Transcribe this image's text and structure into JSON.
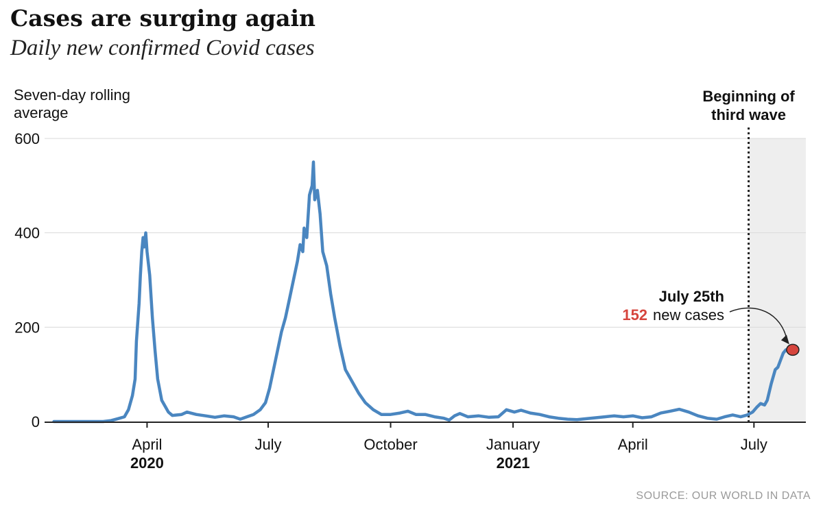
{
  "chart_data": {
    "type": "line",
    "title": "Cases are surging again",
    "subtitle": "Daily new confirmed Covid cases",
    "ylabel_line1": "Seven-day rolling",
    "ylabel_line2": "average",
    "ylim": [
      0,
      600
    ],
    "y_ticks": [
      "0",
      "200",
      "400",
      "600"
    ],
    "grid": true,
    "x_ticks": [
      {
        "label": "April",
        "year": "2020",
        "date": "2020-04-01"
      },
      {
        "label": "July",
        "year": "",
        "date": "2020-07-01"
      },
      {
        "label": "October",
        "year": "",
        "date": "2020-10-01"
      },
      {
        "label": "January",
        "year": "2021",
        "date": "2021-01-01"
      },
      {
        "label": "April",
        "year": "",
        "date": "2021-04-01"
      },
      {
        "label": "July",
        "year": "",
        "date": "2021-07-01"
      }
    ],
    "series": [
      {
        "color": "#4a86c0",
        "points": [
          [
            "2020-01-22",
            0
          ],
          [
            "2020-02-01",
            0
          ],
          [
            "2020-02-15",
            0
          ],
          [
            "2020-02-28",
            0
          ],
          [
            "2020-03-05",
            2
          ],
          [
            "2020-03-10",
            6
          ],
          [
            "2020-03-15",
            10
          ],
          [
            "2020-03-18",
            25
          ],
          [
            "2020-03-21",
            55
          ],
          [
            "2020-03-23",
            90
          ],
          [
            "2020-03-24",
            170
          ],
          [
            "2020-03-26",
            250
          ],
          [
            "2020-03-27",
            310
          ],
          [
            "2020-03-28",
            360
          ],
          [
            "2020-03-29",
            390
          ],
          [
            "2020-03-30",
            370
          ],
          [
            "2020-03-31",
            400
          ],
          [
            "2020-04-01",
            360
          ],
          [
            "2020-04-03",
            310
          ],
          [
            "2020-04-05",
            220
          ],
          [
            "2020-04-07",
            150
          ],
          [
            "2020-04-09",
            90
          ],
          [
            "2020-04-12",
            45
          ],
          [
            "2020-04-14",
            35
          ],
          [
            "2020-04-17",
            20
          ],
          [
            "2020-04-20",
            13
          ],
          [
            "2020-04-27",
            15
          ],
          [
            "2020-05-01",
            20
          ],
          [
            "2020-05-08",
            15
          ],
          [
            "2020-05-15",
            12
          ],
          [
            "2020-05-22",
            9
          ],
          [
            "2020-05-29",
            12
          ],
          [
            "2020-06-05",
            10
          ],
          [
            "2020-06-10",
            5
          ],
          [
            "2020-06-15",
            10
          ],
          [
            "2020-06-20",
            15
          ],
          [
            "2020-06-25",
            25
          ],
          [
            "2020-06-29",
            40
          ],
          [
            "2020-07-02",
            70
          ],
          [
            "2020-07-05",
            110
          ],
          [
            "2020-07-08",
            150
          ],
          [
            "2020-07-11",
            190
          ],
          [
            "2020-07-14",
            220
          ],
          [
            "2020-07-17",
            260
          ],
          [
            "2020-07-20",
            300
          ],
          [
            "2020-07-23",
            340
          ],
          [
            "2020-07-25",
            375
          ],
          [
            "2020-07-27",
            360
          ],
          [
            "2020-07-28",
            410
          ],
          [
            "2020-07-30",
            390
          ],
          [
            "2020-08-01",
            480
          ],
          [
            "2020-08-03",
            500
          ],
          [
            "2020-08-04",
            550
          ],
          [
            "2020-08-05",
            470
          ],
          [
            "2020-08-07",
            490
          ],
          [
            "2020-08-09",
            440
          ],
          [
            "2020-08-11",
            360
          ],
          [
            "2020-08-14",
            330
          ],
          [
            "2020-08-17",
            270
          ],
          [
            "2020-08-20",
            220
          ],
          [
            "2020-08-24",
            160
          ],
          [
            "2020-08-28",
            110
          ],
          [
            "2020-09-02",
            85
          ],
          [
            "2020-09-07",
            60
          ],
          [
            "2020-09-12",
            40
          ],
          [
            "2020-09-18",
            25
          ],
          [
            "2020-09-24",
            15
          ],
          [
            "2020-10-01",
            15
          ],
          [
            "2020-10-08",
            18
          ],
          [
            "2020-10-14",
            22
          ],
          [
            "2020-10-20",
            15
          ],
          [
            "2020-10-27",
            15
          ],
          [
            "2020-11-03",
            10
          ],
          [
            "2020-11-10",
            7
          ],
          [
            "2020-11-14",
            3
          ],
          [
            "2020-11-18",
            12
          ],
          [
            "2020-11-22",
            17
          ],
          [
            "2020-11-28",
            10
          ],
          [
            "2020-12-06",
            12
          ],
          [
            "2020-12-14",
            9
          ],
          [
            "2020-12-21",
            10
          ],
          [
            "2020-12-27",
            25
          ],
          [
            "2021-01-02",
            20
          ],
          [
            "2021-01-07",
            24
          ],
          [
            "2021-01-14",
            18
          ],
          [
            "2021-01-21",
            15
          ],
          [
            "2021-01-28",
            10
          ],
          [
            "2021-02-04",
            7
          ],
          [
            "2021-02-11",
            5
          ],
          [
            "2021-02-18",
            4
          ],
          [
            "2021-02-25",
            6
          ],
          [
            "2021-03-04",
            8
          ],
          [
            "2021-03-11",
            10
          ],
          [
            "2021-03-18",
            12
          ],
          [
            "2021-03-25",
            10
          ],
          [
            "2021-04-01",
            12
          ],
          [
            "2021-04-08",
            8
          ],
          [
            "2021-04-15",
            10
          ],
          [
            "2021-04-22",
            18
          ],
          [
            "2021-04-29",
            22
          ],
          [
            "2021-05-06",
            26
          ],
          [
            "2021-05-13",
            20
          ],
          [
            "2021-05-20",
            12
          ],
          [
            "2021-05-27",
            7
          ],
          [
            "2021-06-03",
            5
          ],
          [
            "2021-06-09",
            10
          ],
          [
            "2021-06-15",
            14
          ],
          [
            "2021-06-21",
            10
          ],
          [
            "2021-06-26",
            14
          ],
          [
            "2021-06-30",
            20
          ],
          [
            "2021-07-03",
            30
          ],
          [
            "2021-07-06",
            38
          ],
          [
            "2021-07-09",
            35
          ],
          [
            "2021-07-11",
            45
          ],
          [
            "2021-07-14",
            80
          ],
          [
            "2021-07-17",
            110
          ],
          [
            "2021-07-19",
            115
          ],
          [
            "2021-07-21",
            130
          ],
          [
            "2021-07-23",
            145
          ],
          [
            "2021-07-25",
            152
          ]
        ]
      }
    ],
    "shaded_region_start": "2021-06-27",
    "shaded_region_label_line1": "Beginning of",
    "shaded_region_label_line2": "third wave",
    "annotation": {
      "date": "2021-07-25",
      "value": 152,
      "title": "July 25th",
      "number": "152",
      "number_color": "#d6453d",
      "text": "new cases"
    },
    "source": "SOURCE: OUR WORLD IN DATA"
  }
}
